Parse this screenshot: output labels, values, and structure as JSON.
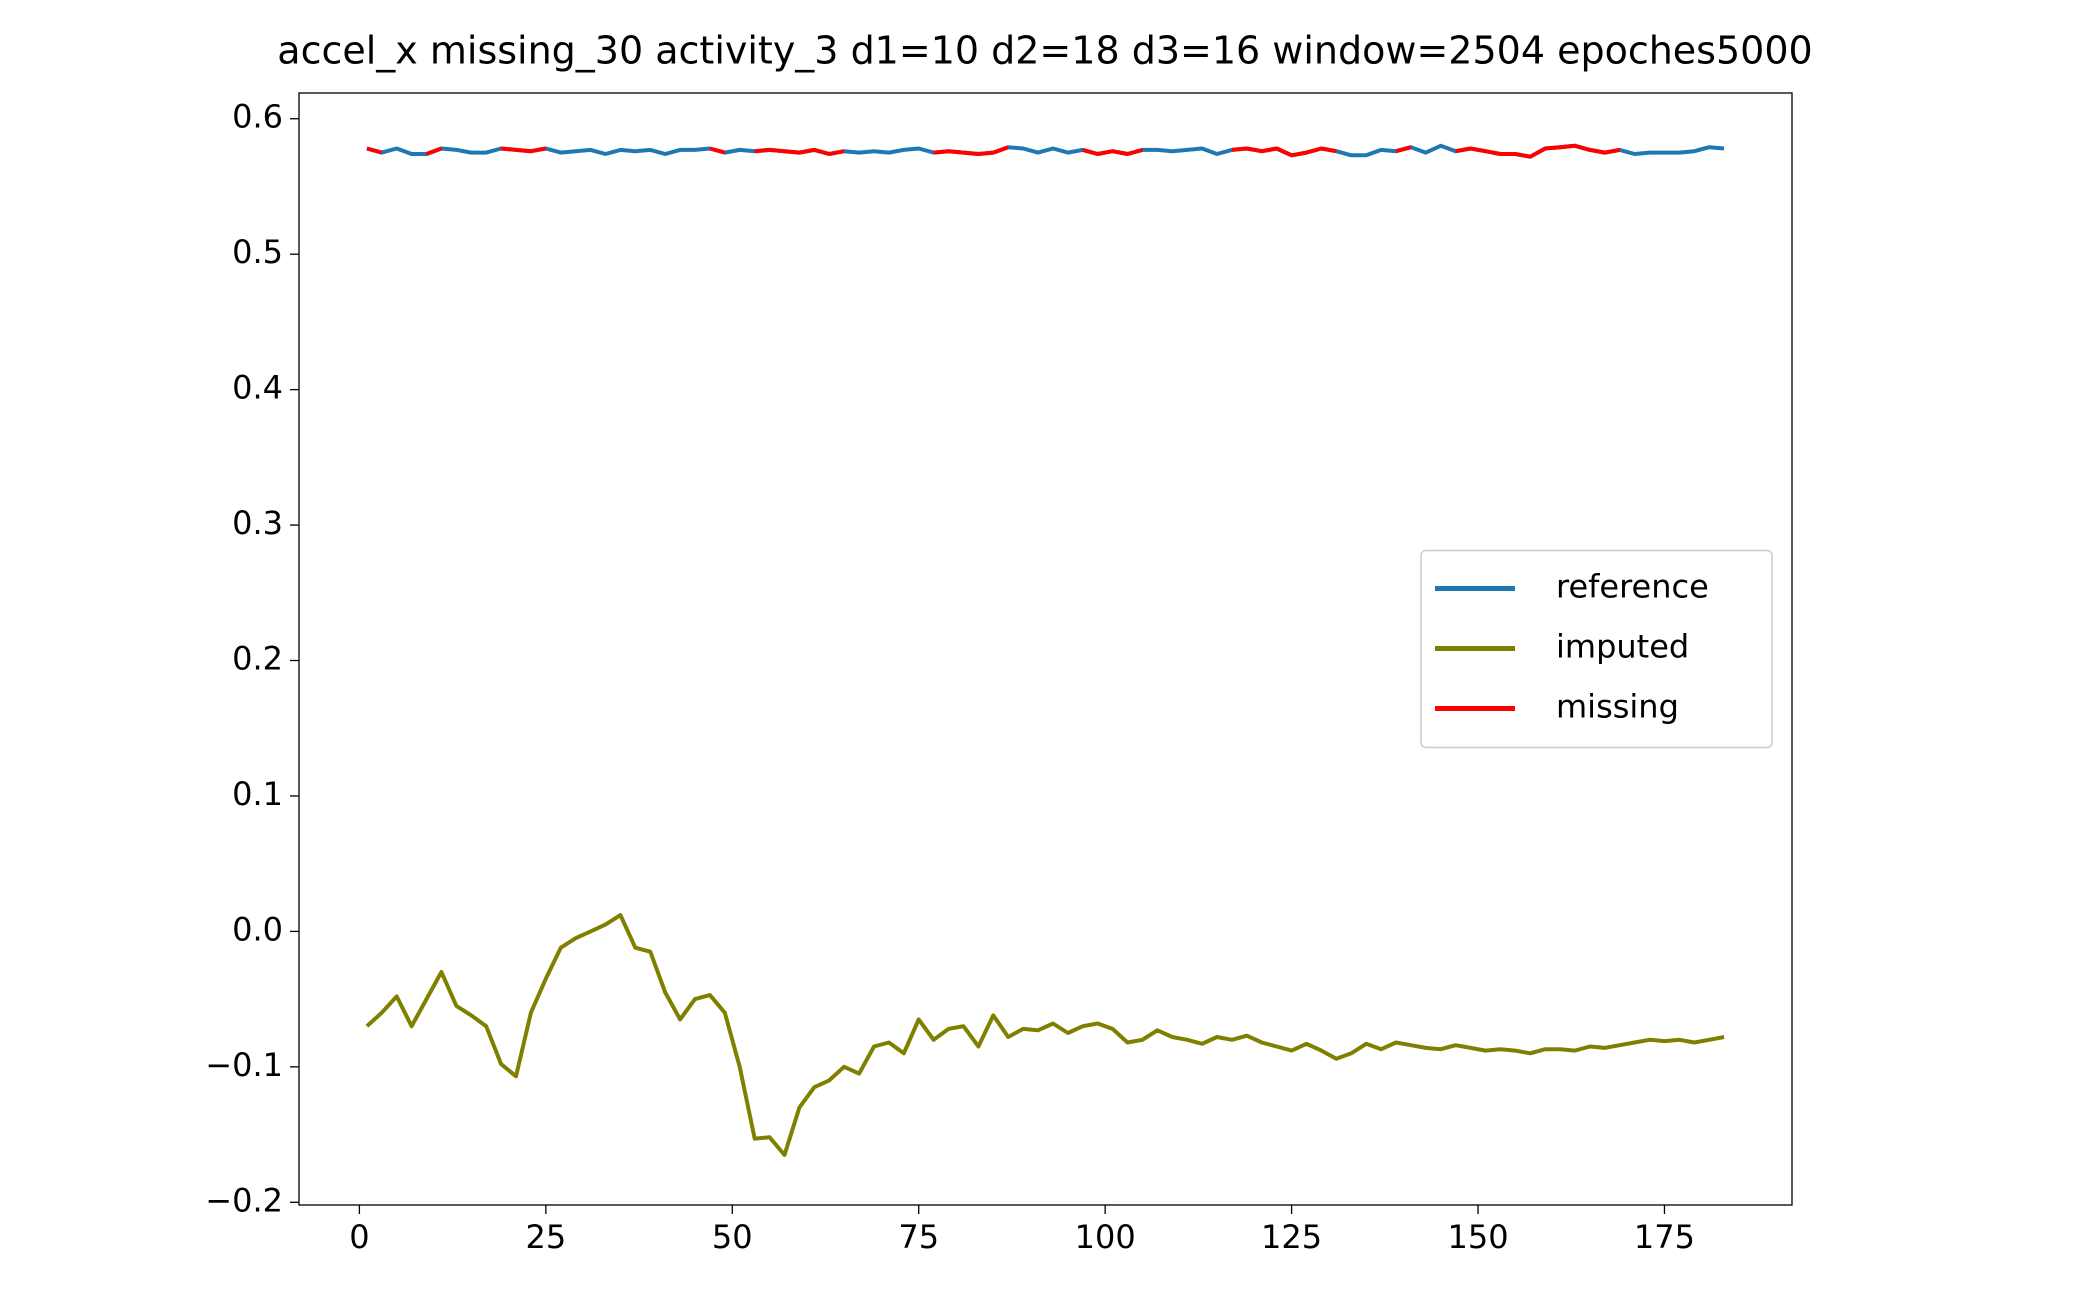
{
  "chart_data": {
    "type": "line",
    "title": "accel_x missing_30 activity_3 d1=10 d2=18 d3=16 window=2504 epoches5000",
    "x": [
      1,
      3,
      5,
      7,
      9,
      11,
      13,
      15,
      17,
      19,
      21,
      23,
      25,
      27,
      29,
      31,
      33,
      35,
      37,
      39,
      41,
      43,
      45,
      47,
      49,
      51,
      53,
      55,
      57,
      59,
      61,
      63,
      65,
      67,
      69,
      71,
      73,
      75,
      77,
      79,
      81,
      83,
      85,
      87,
      89,
      91,
      93,
      95,
      97,
      99,
      101,
      103,
      105,
      107,
      109,
      111,
      113,
      115,
      117,
      119,
      121,
      123,
      125,
      127,
      129,
      131,
      133,
      135,
      137,
      139,
      141,
      143,
      145,
      147,
      149,
      151,
      153,
      155,
      157,
      159,
      161,
      163,
      165,
      167,
      169,
      171,
      173,
      175,
      177,
      179,
      181,
      183
    ],
    "series": [
      {
        "name": "reference",
        "color": "#1f77b4",
        "values": [
          0.578,
          0.575,
          0.578,
          0.574,
          0.574,
          0.578,
          0.577,
          0.575,
          0.575,
          0.578,
          0.577,
          0.576,
          0.578,
          0.575,
          0.576,
          0.577,
          0.574,
          0.577,
          0.576,
          0.577,
          0.574,
          0.577,
          0.577,
          0.578,
          0.575,
          0.577,
          0.576,
          0.577,
          0.576,
          0.575,
          0.577,
          0.574,
          0.576,
          0.575,
          0.576,
          0.575,
          0.577,
          0.578,
          0.575,
          0.576,
          0.575,
          0.574,
          0.575,
          0.579,
          0.578,
          0.575,
          0.578,
          0.575,
          0.577,
          0.574,
          0.576,
          0.574,
          0.577,
          0.577,
          0.576,
          0.577,
          0.578,
          0.574,
          0.577,
          0.578,
          0.576,
          0.578,
          0.573,
          0.575,
          0.578,
          0.576,
          0.573,
          0.573,
          0.577,
          0.576,
          0.579,
          0.575,
          0.58,
          0.576,
          0.578,
          0.576,
          0.574,
          0.574,
          0.572,
          0.578,
          0.579,
          0.58,
          0.577,
          0.575,
          0.577,
          0.574,
          0.575,
          0.575,
          0.575,
          0.576,
          0.579,
          0.578
        ]
      },
      {
        "name": "imputed",
        "color": "#808000",
        "values": [
          -0.07,
          -0.06,
          -0.048,
          -0.07,
          -0.05,
          -0.03,
          -0.055,
          -0.062,
          -0.07,
          -0.098,
          -0.107,
          -0.06,
          -0.035,
          -0.012,
          -0.005,
          0.0,
          0.005,
          0.012,
          -0.012,
          -0.015,
          -0.045,
          -0.065,
          -0.05,
          -0.047,
          -0.06,
          -0.1,
          -0.153,
          -0.152,
          -0.165,
          -0.13,
          -0.115,
          -0.11,
          -0.1,
          -0.105,
          -0.085,
          -0.082,
          -0.09,
          -0.065,
          -0.08,
          -0.072,
          -0.07,
          -0.085,
          -0.062,
          -0.078,
          -0.072,
          -0.073,
          -0.068,
          -0.075,
          -0.07,
          -0.068,
          -0.072,
          -0.082,
          -0.08,
          -0.073,
          -0.078,
          -0.08,
          -0.083,
          -0.078,
          -0.08,
          -0.077,
          -0.082,
          -0.085,
          -0.088,
          -0.083,
          -0.088,
          -0.094,
          -0.09,
          -0.083,
          -0.087,
          -0.082,
          -0.084,
          -0.086,
          -0.087,
          -0.084,
          -0.086,
          -0.088,
          -0.087,
          -0.088,
          -0.09,
          -0.087,
          -0.087,
          -0.088,
          -0.085,
          -0.086,
          -0.084,
          -0.082,
          -0.08,
          -0.081,
          -0.08,
          -0.082,
          -0.08,
          -0.078
        ]
      },
      {
        "name": "missing",
        "color": "#ff0000",
        "values": [
          0.578,
          0.575,
          null,
          null,
          0.574,
          0.578,
          null,
          null,
          null,
          0.578,
          0.577,
          0.576,
          0.578,
          null,
          null,
          null,
          null,
          null,
          null,
          null,
          null,
          null,
          null,
          0.578,
          0.575,
          null,
          0.576,
          0.577,
          0.576,
          0.575,
          0.577,
          0.574,
          0.576,
          null,
          null,
          null,
          null,
          null,
          0.575,
          0.576,
          0.575,
          0.574,
          0.575,
          0.579,
          null,
          null,
          null,
          null,
          0.577,
          0.574,
          0.576,
          0.574,
          0.577,
          null,
          null,
          null,
          null,
          null,
          0.577,
          0.578,
          0.576,
          0.578,
          0.573,
          0.575,
          0.578,
          0.576,
          null,
          null,
          null,
          0.576,
          0.579,
          null,
          null,
          0.576,
          0.578,
          0.576,
          0.574,
          0.574,
          0.572,
          0.578,
          0.579,
          0.58,
          0.577,
          0.575,
          0.577,
          null,
          null,
          null,
          null,
          null,
          null,
          null
        ]
      }
    ],
    "xlim": [
      -8.1,
      192.1
    ],
    "ylim": [
      -0.202,
      0.619
    ],
    "xticks": [
      0,
      25,
      50,
      75,
      100,
      125,
      150,
      175
    ],
    "yticks": [
      {
        "value": -0.2,
        "label": "−0.2"
      },
      {
        "value": -0.1,
        "label": "−0.1"
      },
      {
        "value": 0,
        "label": "0.0"
      },
      0.1,
      0.2,
      0.3,
      0.4,
      0.5,
      0.6
    ],
    "legend": "center right"
  }
}
